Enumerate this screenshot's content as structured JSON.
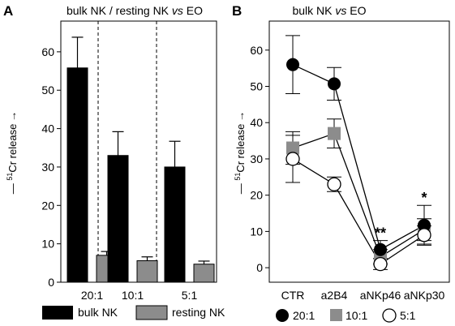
{
  "chart_data": [
    {
      "type": "bar",
      "panel_label": "A",
      "title_parts": [
        "bulk NK / resting NK ",
        "vs",
        " EO"
      ],
      "ylabel_parts": [
        "— ",
        "51",
        "Cr release",
        "→"
      ],
      "categories": [
        "20:1",
        "10:1",
        "5:1"
      ],
      "ylim": [
        0,
        68
      ],
      "yticks": [
        0,
        10,
        20,
        30,
        40,
        50,
        60
      ],
      "grid": false,
      "legend_position": "bottom",
      "series": [
        {
          "name": "bulk NK",
          "color": "#000000",
          "values": [
            55.8,
            33.0,
            30.0
          ],
          "errors": [
            8.0,
            6.2,
            6.7
          ]
        },
        {
          "name": "resting NK",
          "color": "#8c8c8c",
          "values": [
            7.0,
            5.6,
            4.7
          ],
          "errors": [
            1.0,
            1.0,
            0.8
          ]
        }
      ]
    },
    {
      "type": "line",
      "panel_label": "B",
      "title_parts": [
        "bulk NK ",
        "vs",
        " EO"
      ],
      "ylabel_parts": [
        "— ",
        "51",
        "Cr release",
        "→"
      ],
      "categories": [
        "CTR",
        "a2B4",
        "aNKp46",
        "aNKp30"
      ],
      "ylim": [
        -4,
        68
      ],
      "yticks": [
        0,
        10,
        20,
        30,
        40,
        50,
        60
      ],
      "grid": false,
      "legend_position": "bottom",
      "series": [
        {
          "name": "20:1",
          "marker": "filled-circle",
          "color": "#000000",
          "values": [
            56.0,
            50.7,
            5.0,
            11.7
          ],
          "errors": [
            8.0,
            4.5,
            2.5,
            5.5
          ]
        },
        {
          "name": "10:1",
          "marker": "gray-square",
          "color": "#8c8c8c",
          "values": [
            33.0,
            37.0,
            3.0,
            10.5
          ],
          "errors": [
            4.5,
            4.0,
            2.0,
            3.0
          ]
        },
        {
          "name": "5:1",
          "marker": "open-circle",
          "color": "#ffffff",
          "values": [
            30.0,
            23.0,
            1.0,
            9.0
          ],
          "errors": [
            6.5,
            2.0,
            1.5,
            2.5
          ]
        }
      ],
      "annotations": [
        {
          "category": "aNKp46",
          "text": "**"
        },
        {
          "category": "aNKp30",
          "text": "*"
        }
      ]
    }
  ]
}
